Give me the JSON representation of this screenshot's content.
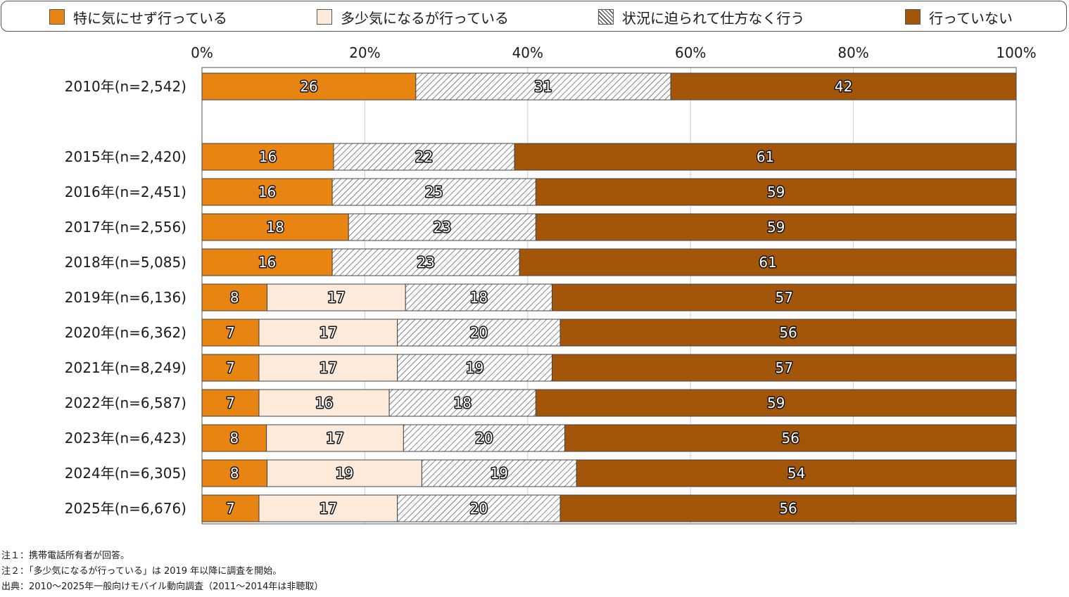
{
  "chart_data": {
    "type": "bar",
    "orientation": "horizontal",
    "stacked": true,
    "percent": true,
    "xlim": [
      0,
      100
    ],
    "tick_labels": [
      "0%",
      "20%",
      "40%",
      "60%",
      "80%",
      "100%"
    ],
    "tick_values": [
      0,
      20,
      40,
      60,
      80,
      100
    ],
    "grid": true,
    "legend_position": "top",
    "series": [
      {
        "name": "特に気にせず行っている",
        "color": "#e88512",
        "pattern": "solid",
        "legend_label": "特に気にせず行っている"
      },
      {
        "name": "多少気になるが行っている",
        "color": "#fdeadb",
        "pattern": "solid",
        "legend_label": "多少気になるが行っている"
      },
      {
        "name": "状況に迫られて仕方なく行う",
        "color": "#ffffff",
        "pattern": "hatch",
        "legend_label": "状況に迫られて仕方なく行う"
      },
      {
        "name": "行っていない",
        "color": "#a35609",
        "pattern": "solid",
        "legend_label": "行っていない"
      }
    ],
    "categories": [
      {
        "label": "2010年(n=2,542)",
        "values": [
          26,
          null,
          31,
          42
        ],
        "labels": [
          "26",
          "",
          "31",
          "42"
        ],
        "gap_after": true
      },
      {
        "label": "2015年(n=2,420)",
        "values": [
          16,
          null,
          22,
          61
        ],
        "labels": [
          "16",
          "",
          "22",
          "61"
        ]
      },
      {
        "label": "2016年(n=2,451)",
        "values": [
          16,
          null,
          25,
          59
        ],
        "labels": [
          "16",
          "",
          "25",
          "59"
        ]
      },
      {
        "label": "2017年(n=2,556)",
        "values": [
          18,
          null,
          23,
          59
        ],
        "labels": [
          "18",
          "",
          "23",
          "59"
        ]
      },
      {
        "label": "2018年(n=5,085)",
        "values": [
          16,
          null,
          23,
          61
        ],
        "labels": [
          "16",
          "",
          "23",
          "61"
        ]
      },
      {
        "label": "2019年(n=6,136)",
        "values": [
          8,
          17,
          18,
          57
        ],
        "labels": [
          "8",
          "17",
          "18",
          "57"
        ]
      },
      {
        "label": "2020年(n=6,362)",
        "values": [
          7,
          17,
          20,
          56
        ],
        "labels": [
          "7",
          "17",
          "20",
          "56"
        ]
      },
      {
        "label": "2021年(n=8,249)",
        "values": [
          7,
          17,
          19,
          57
        ],
        "labels": [
          "7",
          "17",
          "19",
          "57"
        ]
      },
      {
        "label": "2022年(n=6,587)",
        "values": [
          7,
          16,
          18,
          59
        ],
        "labels": [
          "7",
          "16",
          "18",
          "59"
        ]
      },
      {
        "label": "2023年(n=6,423)",
        "values": [
          8,
          17,
          20,
          56
        ],
        "labels": [
          "8",
          "17",
          "20",
          "56"
        ]
      },
      {
        "label": "2024年(n=6,305)",
        "values": [
          8,
          19,
          19,
          54
        ],
        "labels": [
          "8",
          "19",
          "19",
          "54"
        ]
      },
      {
        "label": "2025年(n=6,676)",
        "values": [
          7,
          17,
          20,
          56
        ],
        "labels": [
          "7",
          "17",
          "20",
          "56"
        ]
      }
    ]
  },
  "notes": [
    "注１：携帯電話所有者が回答。",
    "注２：「多少気になるが行っている」は 2019 年以降に調査を開始。",
    "出典：2010～2025年一般向けモバイル動向調査（2011～2014年は非聴取）"
  ],
  "colors": {
    "axis": "#555555",
    "grid": "#cccccc",
    "bar_border": "#444444"
  }
}
